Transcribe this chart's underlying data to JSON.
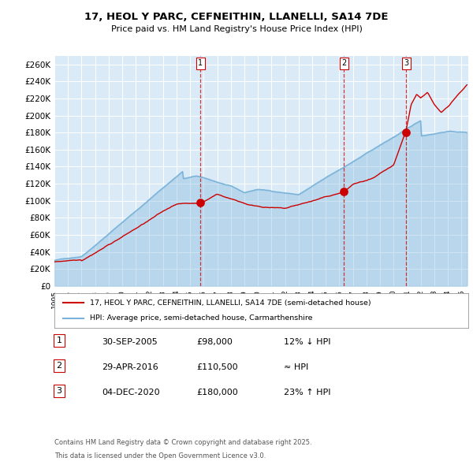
{
  "title_line1": "17, HEOL Y PARC, CEFNEITHIN, LLANELLI, SA14 7DE",
  "title_line2": "Price paid vs. HM Land Registry's House Price Index (HPI)",
  "legend_line1": "17, HEOL Y PARC, CEFNEITHIN, LLANELLI, SA14 7DE (semi-detached house)",
  "legend_line2": "HPI: Average price, semi-detached house, Carmarthenshire",
  "footer_line1": "Contains HM Land Registry data © Crown copyright and database right 2025.",
  "footer_line2": "This data is licensed under the Open Government Licence v3.0.",
  "hpi_color": "#7ab3d9",
  "price_color": "#cc0000",
  "background_color": "#daeaf7",
  "sale_dates_year": [
    2005.75,
    2016.33,
    2020.92
  ],
  "sale_prices": [
    98000,
    110500,
    180000
  ],
  "sale_labels": [
    "1",
    "2",
    "3"
  ],
  "vline_dates": [
    2005.75,
    2016.33,
    2020.92
  ],
  "table_rows": [
    [
      "1",
      "30-SEP-2005",
      "£98,000",
      "12% ↓ HPI"
    ],
    [
      "2",
      "29-APR-2016",
      "£110,500",
      "≈ HPI"
    ],
    [
      "3",
      "04-DEC-2020",
      "£180,000",
      "23% ↑ HPI"
    ]
  ],
  "ylim": [
    0,
    270000
  ],
  "xlim_start": 1995.0,
  "xlim_end": 2025.5
}
